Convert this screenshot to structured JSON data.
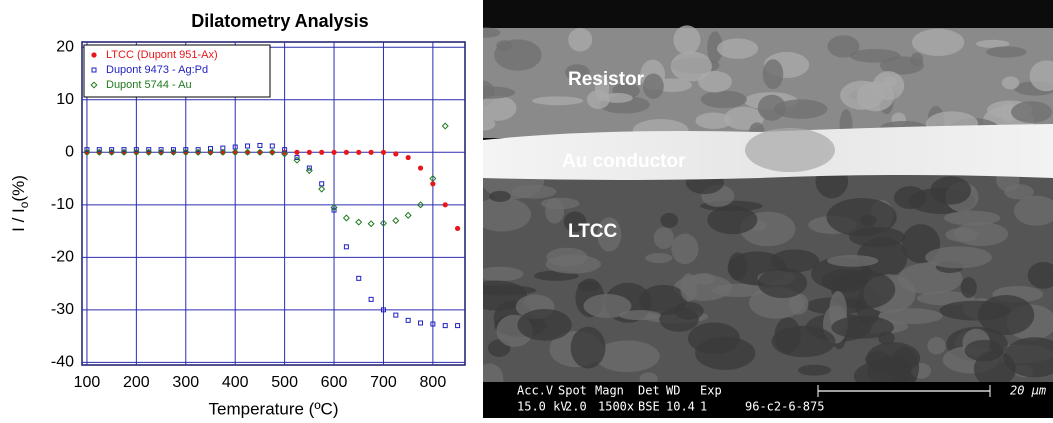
{
  "chart_data": {
    "type": "scatter",
    "title": "Dilatometry Analysis",
    "x_label": "Temperature (ºC)",
    "y_label": [
      "I / I",
      "o",
      "(%)"
    ],
    "x": [
      100,
      125,
      150,
      175,
      200,
      225,
      250,
      275,
      300,
      325,
      350,
      375,
      400,
      425,
      450,
      475,
      500,
      525,
      550,
      575,
      600,
      625,
      650,
      675,
      700,
      725,
      750,
      775,
      800,
      825,
      850
    ],
    "series": [
      {
        "name": "LTCC (Dupont 951-Ax)",
        "color": "#e8161b",
        "marker": "dot",
        "values": [
          0,
          0,
          0,
          0,
          0,
          0,
          0,
          0,
          0,
          0,
          0,
          0,
          0,
          0,
          0,
          0,
          0,
          0,
          0,
          0,
          0,
          0,
          0,
          0,
          0,
          -0.3,
          -1,
          -3,
          -6,
          -10,
          -14.5
        ]
      },
      {
        "name": "Dupont  9473 - Ag:Pd",
        "color": "#1f1fc4",
        "marker": "square",
        "values": [
          0.5,
          0.5,
          0.5,
          0.5,
          0.5,
          0.5,
          0.5,
          0.5,
          0.5,
          0.5,
          0.7,
          0.8,
          1,
          1.2,
          1.3,
          1.2,
          0.5,
          -1,
          -3,
          -6,
          -11,
          -18,
          -24,
          -28,
          -30,
          -31,
          -32,
          -32.5,
          -32.7,
          -33,
          -33
        ]
      },
      {
        "name": "Dupont  5744 - Au",
        "color": "#1f7a1f",
        "marker": "diamond",
        "values": [
          0,
          0,
          0,
          0,
          0,
          0,
          0,
          0,
          0,
          0,
          0,
          0,
          0,
          0,
          0,
          0,
          -0.3,
          -1.5,
          -3.5,
          -7,
          -10.5,
          -12.5,
          -13.3,
          -13.6,
          -13.5,
          -13,
          -12,
          -10,
          -5,
          5,
          null
        ]
      }
    ],
    "xlim": [
      90,
      865
    ],
    "ylim": [
      -40.5,
      21
    ],
    "xticks": [
      100,
      200,
      300,
      400,
      500,
      600,
      700,
      800
    ],
    "yticks": [
      20,
      10,
      0,
      -10,
      -20,
      -30,
      -40
    ],
    "grid": true,
    "grid_color": "#2b2bb0",
    "legend": "upper left"
  },
  "micrograph": {
    "labels": [
      "Resistor",
      "Au conductor",
      "LTCC"
    ],
    "info_headers": [
      "Acc.V",
      "Spot",
      "Magn",
      "Det",
      "WD",
      "Exp"
    ],
    "info_values": [
      "15.0 kV",
      "2.0",
      "1500x",
      "BSE",
      "10.4",
      "1",
      "96-c2-6-875"
    ],
    "scale": "20 µm"
  }
}
